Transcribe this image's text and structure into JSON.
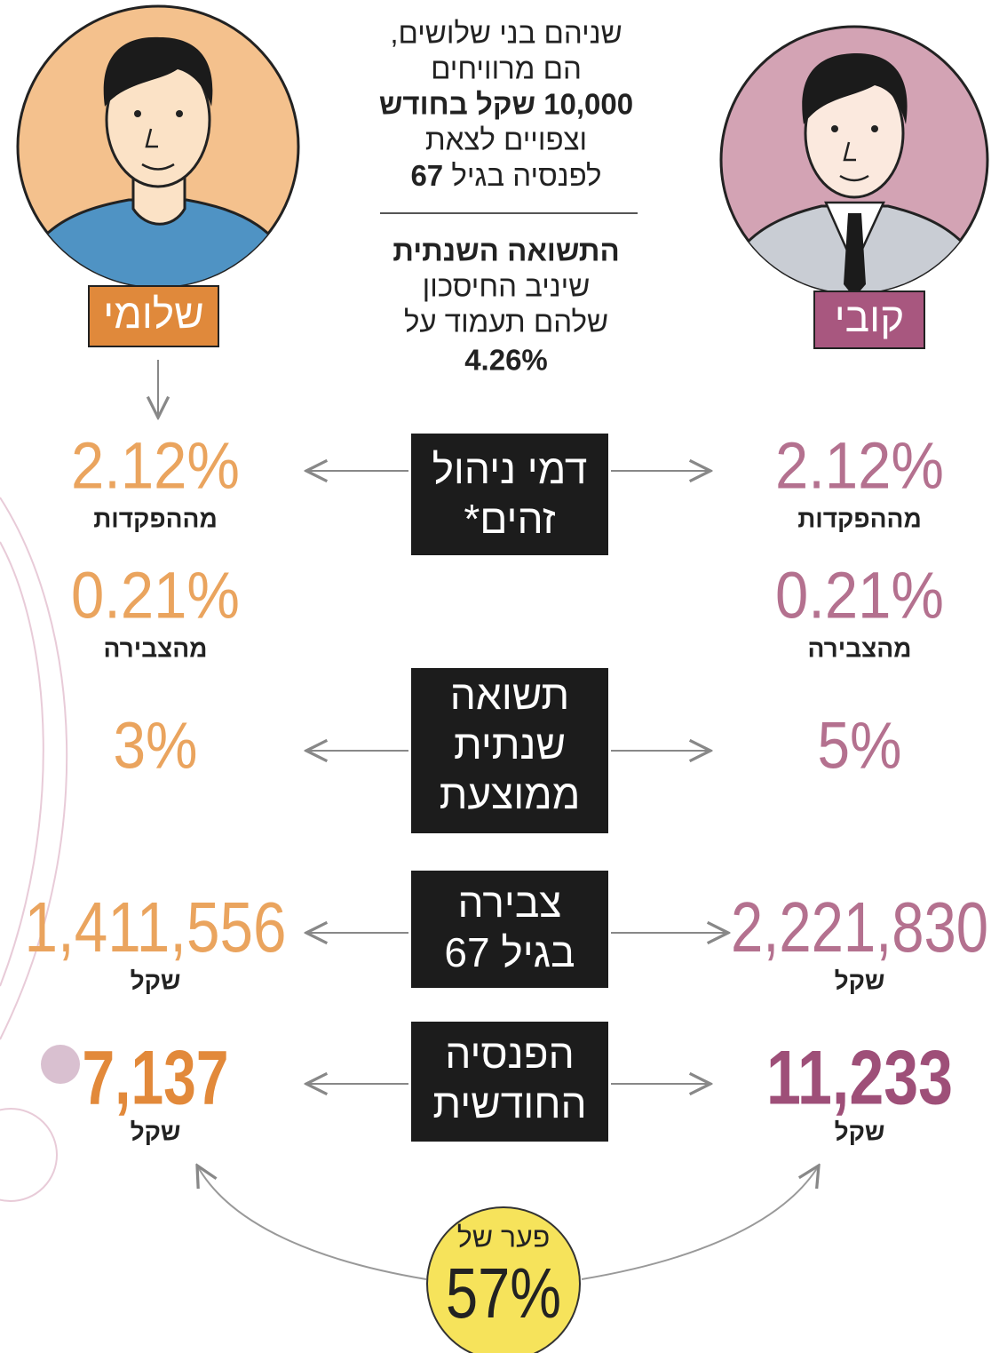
{
  "intro": {
    "lines": [
      "שניהם בני שלושים,",
      "הם מרוויחים",
      "10,000 שקל בחודש",
      "וצפויים לצאת"
    ],
    "retire_text": "לפנסיה בגיל",
    "retire_age": "67"
  },
  "return_note": {
    "lines": [
      "התשואה השנתית",
      "שיניב החיסכון",
      "שלהם תעמוד על"
    ],
    "rate": "4.26%"
  },
  "people": [
    {
      "name": "שלומי"
    },
    {
      "name": "קובי"
    }
  ],
  "rows": [
    {
      "label": [
        "דמי ניהול",
        "זהים*"
      ],
      "left": {
        "value": "2.12%",
        "unit": "מההפקדות"
      },
      "right": {
        "value": "2.12%",
        "unit": "מההפקדות"
      }
    },
    {
      "left": {
        "value": "0.21%",
        "unit": "מהצבירה"
      },
      "right": {
        "value": "0.21%",
        "unit": "מהצבירה"
      }
    },
    {
      "label": [
        "תשואה",
        "שנתית",
        "ממוצעת"
      ],
      "left": {
        "value": "3%"
      },
      "right": {
        "value": "5%"
      }
    },
    {
      "label": [
        "צבירה",
        "בגיל 67"
      ],
      "left": {
        "value": "1,411,556",
        "unit": "שקל"
      },
      "right": {
        "value": "2,221,830",
        "unit": "שקל"
      }
    },
    {
      "label": [
        "הפנסיה",
        "החודשית"
      ],
      "left": {
        "value": "7,137",
        "unit": "שקל"
      },
      "right": {
        "value": "11,233",
        "unit": "שקל"
      }
    }
  ],
  "gap": {
    "label": "פער של",
    "value": "57%"
  }
}
